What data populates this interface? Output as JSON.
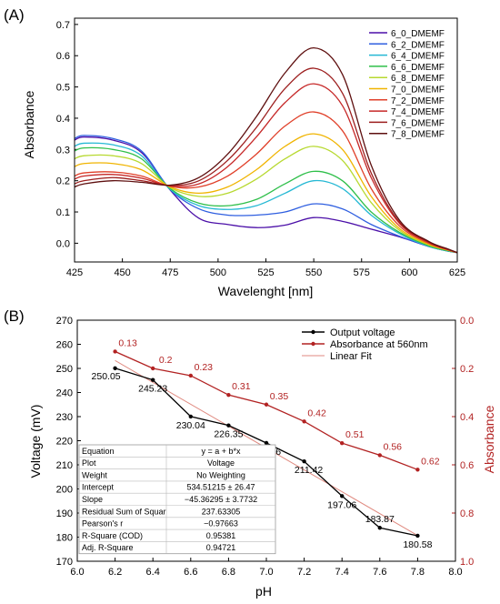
{
  "chart_data": [
    {
      "panel_label": "(A)",
      "type": "line",
      "xlabel": "Wavelenght [nm]",
      "ylabel": "Absorbance",
      "xlim": [
        425,
        625
      ],
      "ylim": [
        -0.06,
        0.72
      ],
      "xticks": [
        425,
        450,
        475,
        500,
        525,
        550,
        575,
        600,
        625
      ],
      "yticks": [
        0.0,
        0.1,
        0.2,
        0.3,
        0.4,
        0.5,
        0.6,
        0.7
      ],
      "legend_position": "top-right",
      "series": [
        {
          "name": "6_0_DMEMF",
          "color": "#4b0fa8",
          "values": [
            0.34,
            0.33,
            0.29,
            0.17,
            0.08,
            0.06,
            0.05,
            0.058,
            0.082,
            0.07,
            0.045,
            0.02,
            -0.01,
            -0.025,
            -0.03
          ]
        },
        {
          "name": "6_2_DMEMF",
          "color": "#2f5fe0",
          "values": [
            0.345,
            0.335,
            0.295,
            0.172,
            0.11,
            0.09,
            0.09,
            0.1,
            0.126,
            0.11,
            0.06,
            0.022,
            -0.01,
            -0.025,
            -0.03
          ]
        },
        {
          "name": "6_4_DMEMF",
          "color": "#25b8d4",
          "values": [
            0.32,
            0.315,
            0.28,
            0.172,
            0.12,
            0.108,
            0.12,
            0.16,
            0.2,
            0.175,
            0.09,
            0.03,
            -0.01,
            -0.025,
            -0.03
          ]
        },
        {
          "name": "6_6_DMEMF",
          "color": "#2fbf4a",
          "values": [
            0.305,
            0.3,
            0.27,
            0.175,
            0.128,
            0.12,
            0.14,
            0.19,
            0.23,
            0.2,
            0.1,
            0.034,
            -0.008,
            -0.024,
            -0.03
          ]
        },
        {
          "name": "6_8_DMEMF",
          "color": "#b7d930",
          "values": [
            0.28,
            0.28,
            0.255,
            0.178,
            0.15,
            0.16,
            0.205,
            0.27,
            0.31,
            0.265,
            0.13,
            0.04,
            -0.005,
            -0.022,
            -0.03
          ]
        },
        {
          "name": "7_0_DMEMF",
          "color": "#f0b400",
          "values": [
            0.255,
            0.255,
            0.235,
            0.18,
            0.16,
            0.18,
            0.235,
            0.31,
            0.35,
            0.3,
            0.15,
            0.046,
            -0.003,
            -0.022,
            -0.03
          ]
        },
        {
          "name": "7_2_DMEMF",
          "color": "#e0402a",
          "values": [
            0.225,
            0.228,
            0.215,
            0.182,
            0.18,
            0.215,
            0.285,
            0.375,
            0.42,
            0.36,
            0.175,
            0.054,
            0.0,
            -0.021,
            -0.03
          ]
        },
        {
          "name": "7_4_DMEMF",
          "color": "#c62828",
          "values": [
            0.215,
            0.22,
            0.208,
            0.183,
            0.19,
            0.245,
            0.34,
            0.45,
            0.51,
            0.44,
            0.21,
            0.062,
            0.003,
            -0.02,
            -0.03
          ]
        },
        {
          "name": "7_6_DMEMF",
          "color": "#9c1e1e",
          "values": [
            0.2,
            0.21,
            0.2,
            0.185,
            0.2,
            0.265,
            0.37,
            0.495,
            0.56,
            0.48,
            0.225,
            0.066,
            0.004,
            -0.019,
            -0.03
          ]
        },
        {
          "name": "7_8_DMEMF",
          "color": "#5e0f0f",
          "values": [
            0.19,
            0.2,
            0.195,
            0.186,
            0.21,
            0.285,
            0.405,
            0.545,
            0.625,
            0.54,
            0.25,
            0.072,
            0.006,
            -0.018,
            -0.03
          ]
        }
      ],
      "x": [
        430,
        445,
        460,
        475,
        490,
        505,
        520,
        535,
        550,
        565,
        580,
        595,
        610,
        620,
        625
      ]
    },
    {
      "panel_label": "(B)",
      "type": "line",
      "xlabel": "pH",
      "ylabel": "Voltage (mV)",
      "ylabel_right": "Absorbance",
      "xlim": [
        6.0,
        8.0
      ],
      "ylim": [
        170,
        270
      ],
      "ylim_right": [
        0.0,
        1.0
      ],
      "right_axis_inverted": true,
      "xticks": [
        "6.0",
        "6.2",
        "6.4",
        "6.6",
        "6.8",
        "7.0",
        "7.2",
        "7.4",
        "7.6",
        "7.8",
        "8.0"
      ],
      "yticks": [
        "170",
        "180",
        "190",
        "200",
        "210",
        "220",
        "230",
        "240",
        "250",
        "260",
        "270"
      ],
      "yticks_right": [
        "0.0",
        "0.2",
        "0.4",
        "0.6",
        "0.8",
        "1.0"
      ],
      "legend_position": "top-right",
      "x": [
        6.2,
        6.4,
        6.6,
        6.8,
        7.0,
        7.2,
        7.4,
        7.6,
        7.8
      ],
      "series": [
        {
          "name": "Output voltage",
          "color": "#000000",
          "axis": "left",
          "values": [
            250.05,
            245.23,
            230.04,
            226.35,
            219.06,
            211.42,
            197.06,
            183.87,
            180.58
          ],
          "labels": [
            "250.05",
            "245.23",
            "230.04",
            "226.35",
            "219.06",
            "211.42",
            "197.06",
            "183.87",
            "180.58"
          ]
        },
        {
          "name": "Absorbance at 560nm",
          "color": "#b22222",
          "axis": "right",
          "values": [
            0.13,
            0.2,
            0.23,
            0.31,
            0.35,
            0.42,
            0.51,
            0.56,
            0.62
          ],
          "labels": [
            "0.13",
            "0.2",
            "0.23",
            "0.31",
            "0.35",
            "0.42",
            "0.51",
            "0.56",
            "0.62"
          ]
        },
        {
          "name": "Linear Fit",
          "color": "#e08a80",
          "axis": "left",
          "intercept": 534.51215,
          "slope": -45.36295
        }
      ],
      "fit_table": [
        [
          "Equation",
          "y = a + b*x"
        ],
        [
          "Plot",
          "Voltage"
        ],
        [
          "Weight",
          "No Weighting"
        ],
        [
          "Intercept",
          "534.51215 ± 26.47"
        ],
        [
          "Slope",
          "−45.36295 ± 3.7732"
        ],
        [
          "Residual Sum of Squar",
          "237.63305"
        ],
        [
          "Pearson's r",
          "−0.97663"
        ],
        [
          "R-Square (COD)",
          "0.95381"
        ],
        [
          "Adj. R-Square",
          "0.94721"
        ]
      ]
    }
  ]
}
